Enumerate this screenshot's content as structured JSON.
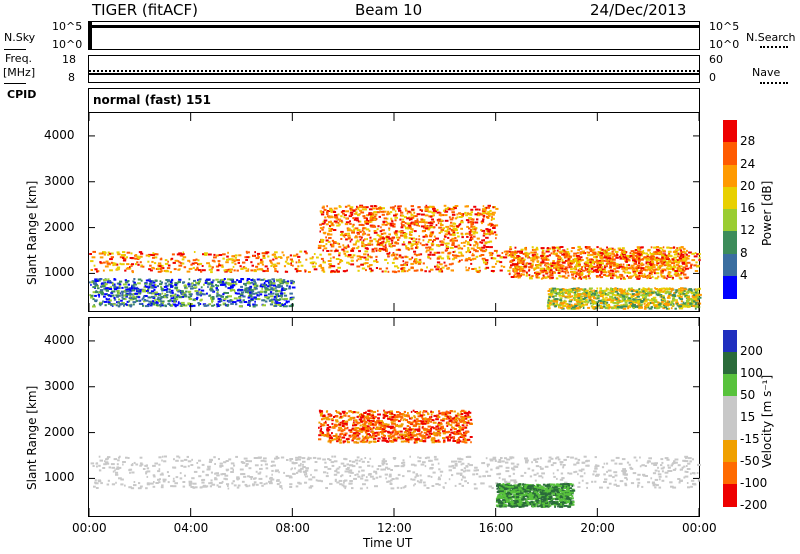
{
  "header": {
    "title": "TIGER (fitACF)",
    "beam": "Beam 10",
    "date": "24/Dec/2013"
  },
  "side_labels": {
    "nsky": "N.Sky",
    "freq": "Freq.",
    "freq_unit": "[MHz]",
    "cpid": "CPID",
    "nsearch": "N.Search",
    "nave": "Nave"
  },
  "top_axes": {
    "nsky_ticks": [
      "10^5",
      "10^0"
    ],
    "nsearch_ticks": [
      "10^5",
      "10^0"
    ],
    "freq_ticks": [
      "18",
      "8"
    ],
    "nave_ticks": [
      "60",
      "0"
    ]
  },
  "cpid_text": "normal (fast) 151",
  "x_axis": {
    "label": "Time UT",
    "ticks": [
      "00:00",
      "04:00",
      "08:00",
      "12:00",
      "16:00",
      "20:00",
      "00:00"
    ]
  },
  "chart_data": [
    {
      "type": "heatmap",
      "ylabel": "Slant Range [km]",
      "xlabel": "Time UT",
      "y_ticks": [
        "1000",
        "2000",
        "3000",
        "4000"
      ],
      "ylim": [
        180,
        4500
      ],
      "xlim_hours": [
        0,
        24
      ],
      "colorbar": {
        "label": "Power [dB]",
        "ticks": [
          "28",
          "24",
          "20",
          "16",
          "12",
          "8",
          "4"
        ],
        "colors": [
          "#ee0000",
          "#ff5a00",
          "#ff9a00",
          "#e8d000",
          "#9acd32",
          "#3c8c5a",
          "#3a6ea0",
          "#0000ff"
        ]
      },
      "bands": [
        {
          "t0": 0,
          "t1": 24,
          "r0": 1050,
          "r1": 1500,
          "level": "high"
        },
        {
          "t0": 9,
          "t1": 16,
          "r0": 1500,
          "r1": 2500,
          "level": "high"
        },
        {
          "t0": 16.5,
          "t1": 23.5,
          "r0": 900,
          "r1": 1600,
          "level": "high"
        },
        {
          "t0": 0,
          "t1": 8,
          "r0": 300,
          "r1": 900,
          "level": "low"
        },
        {
          "t0": 18,
          "t1": 24,
          "r0": 250,
          "r1": 700,
          "level": "mid"
        }
      ]
    },
    {
      "type": "heatmap",
      "ylabel": "Slant Range [km]",
      "xlabel": "Time UT",
      "y_ticks": [
        "1000",
        "2000",
        "3000",
        "4000"
      ],
      "ylim": [
        180,
        4500
      ],
      "xlim_hours": [
        0,
        24
      ],
      "colorbar": {
        "label": "Velocity [m s⁻¹]",
        "ticks": [
          "200",
          "100",
          "50",
          "15",
          "-15",
          "-50",
          "-100",
          "-200"
        ],
        "colors": [
          "#1f2fbf",
          "#2a6b3a",
          "#58c23c",
          "#c8c8c8",
          "#c8c8c8",
          "#f0a000",
          "#ff6a00",
          "#ee0000"
        ]
      },
      "bands": [
        {
          "t0": 0,
          "t1": 24,
          "r0": 800,
          "r1": 1500,
          "level": "zero"
        },
        {
          "t0": 9,
          "t1": 15,
          "r0": 1800,
          "r1": 2500,
          "level": "neg"
        },
        {
          "t0": 16,
          "t1": 19,
          "r0": 400,
          "r1": 900,
          "level": "pos"
        }
      ]
    }
  ]
}
